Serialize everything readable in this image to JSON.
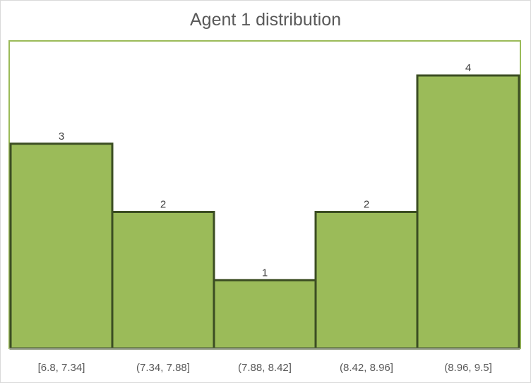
{
  "chart_data": {
    "type": "bar",
    "title": "Agent 1 distribution",
    "categories": [
      "[6.8, 7.34]",
      "(7.34, 7.88]",
      "(7.88, 8.42]",
      "(8.42, 8.96]",
      "(8.96, 9.5]"
    ],
    "values": [
      3,
      2,
      1,
      2,
      4
    ],
    "xlabel": "",
    "ylabel": "",
    "ylim": [
      0,
      4
    ],
    "grid": false,
    "data_labels": true,
    "colors": {
      "bar_fill": "#9bbb59",
      "bar_edge": "#3b4d22",
      "plot_border": "#9bbb59"
    }
  }
}
